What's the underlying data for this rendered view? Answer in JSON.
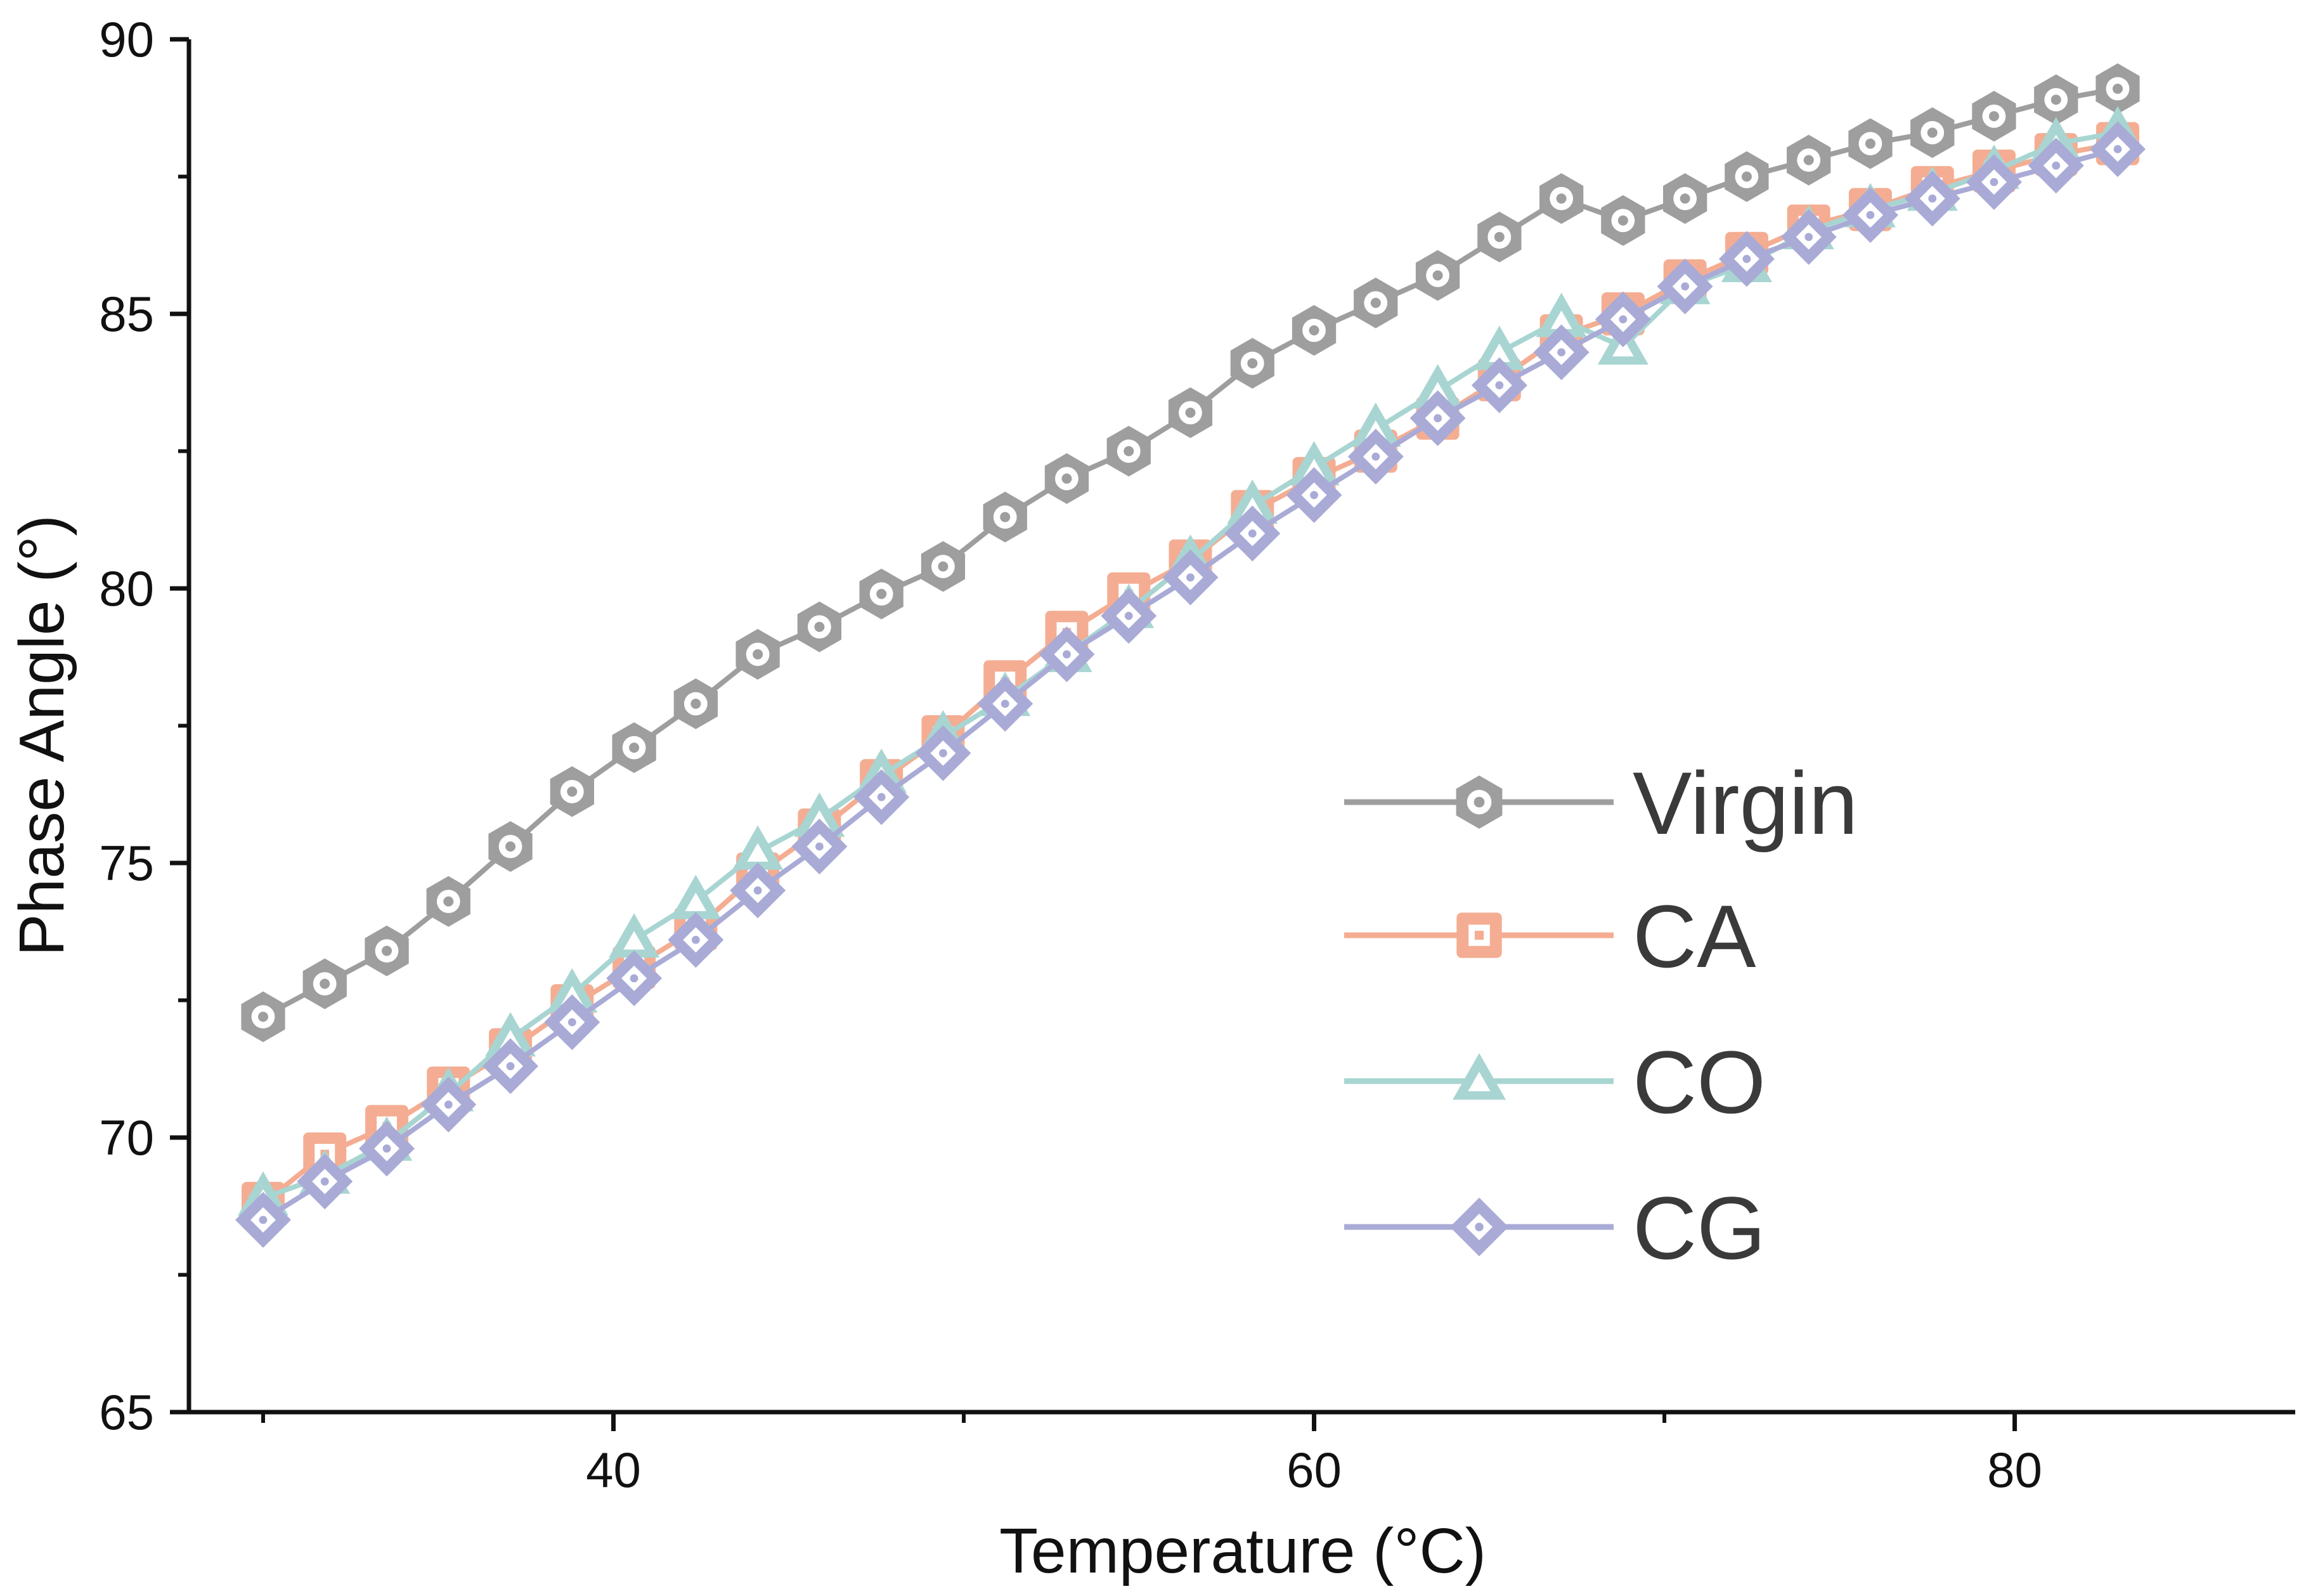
{
  "chart_data": {
    "type": "line",
    "title": "",
    "xlabel": "Temperature (°C)",
    "ylabel": "Phase Angle (°)",
    "xlim": [
      28.5,
      86
    ],
    "ylim": [
      65,
      90
    ],
    "xticks": [
      40,
      60,
      80
    ],
    "xticks_minor": [
      30,
      50,
      70
    ],
    "yticks": [
      65,
      70,
      75,
      80,
      85,
      90
    ],
    "grid": false,
    "legend_position": "right-middle",
    "x": [
      30,
      31.76,
      33.53,
      35.29,
      37.06,
      38.82,
      40.59,
      42.35,
      44.12,
      45.88,
      47.65,
      49.41,
      51.18,
      52.94,
      54.71,
      56.47,
      58.24,
      60,
      61.76,
      63.53,
      65.29,
      67.06,
      68.82,
      70.59,
      72.35,
      74.12,
      75.88,
      77.65,
      79.41,
      81.18,
      82.94
    ],
    "series": [
      {
        "name": "Virgin",
        "color": "#9e9e9e",
        "marker": "hexagon",
        "values": [
          72.2,
          72.8,
          73.4,
          74.3,
          75.3,
          76.3,
          77.1,
          77.9,
          78.8,
          79.3,
          79.9,
          80.4,
          81.3,
          82.0,
          82.5,
          83.2,
          84.1,
          84.7,
          85.2,
          85.7,
          86.4,
          87.1,
          86.7,
          87.1,
          87.5,
          87.8,
          88.1,
          88.3,
          88.6,
          88.9,
          89.1
        ]
      },
      {
        "name": "CA",
        "color": "#f4ad92",
        "marker": "square",
        "values": [
          68.8,
          69.7,
          70.2,
          70.9,
          71.6,
          72.4,
          73.1,
          73.8,
          74.8,
          75.6,
          76.5,
          77.3,
          78.3,
          79.2,
          79.9,
          80.5,
          81.4,
          82.0,
          82.5,
          83.1,
          83.8,
          84.6,
          85.0,
          85.6,
          86.1,
          86.6,
          86.9,
          87.3,
          87.6,
          87.9,
          88.1
        ]
      },
      {
        "name": "CO",
        "color": "#a8d5d2",
        "marker": "triangle",
        "values": [
          68.9,
          69.3,
          69.9,
          70.8,
          71.8,
          72.6,
          73.6,
          74.3,
          75.2,
          75.8,
          76.6,
          77.3,
          78.0,
          78.8,
          79.6,
          80.5,
          81.5,
          82.2,
          82.9,
          83.6,
          84.3,
          84.9,
          84.4,
          85.5,
          85.9,
          86.5,
          86.9,
          87.2,
          87.6,
          88.1,
          88.3
        ]
      },
      {
        "name": "CG",
        "color": "#a9abd6",
        "marker": "diamond",
        "values": [
          68.5,
          69.2,
          69.8,
          70.6,
          71.3,
          72.1,
          72.9,
          73.6,
          74.5,
          75.3,
          76.2,
          77.0,
          77.9,
          78.8,
          79.5,
          80.2,
          81.0,
          81.7,
          82.4,
          83.1,
          83.7,
          84.3,
          84.9,
          85.5,
          86.0,
          86.4,
          86.8,
          87.1,
          87.4,
          87.7,
          88.0
        ]
      }
    ]
  }
}
